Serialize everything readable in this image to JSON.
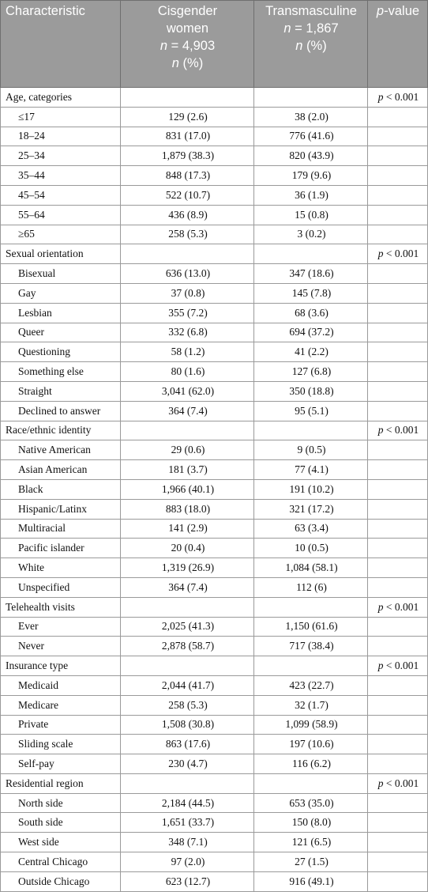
{
  "header": {
    "col1": "Characteristic",
    "col2_line1": "Cisgender",
    "col2_line2": "women",
    "col2_n_italic": "n",
    "col2_n_value": " = 4,903",
    "col2_pct_italic": "n",
    "col2_pct_value": " (%)",
    "col3_line1": "Transmasculine",
    "col3_n_italic": "n",
    "col3_n_value": " = 1,867",
    "col3_pct_italic": "n",
    "col3_pct_value": " (%)",
    "col4_italic": "p",
    "col4_rest": "-value"
  },
  "p_italic": "p",
  "rows": [
    {
      "label": "Age, categories",
      "cis": "",
      "trans": "",
      "p": " < 0.001",
      "category": true
    },
    {
      "label": "≤17",
      "cis": "129 (2.6)",
      "trans": "38 (2.0)",
      "p": ""
    },
    {
      "label": "18–24",
      "cis": "831 (17.0)",
      "trans": "776 (41.6)",
      "p": ""
    },
    {
      "label": "25–34",
      "cis": "1,879 (38.3)",
      "trans": "820 (43.9)",
      "p": ""
    },
    {
      "label": "35–44",
      "cis": "848 (17.3)",
      "trans": "179 (9.6)",
      "p": ""
    },
    {
      "label": "45–54",
      "cis": "522 (10.7)",
      "trans": "36 (1.9)",
      "p": ""
    },
    {
      "label": "55–64",
      "cis": "436 (8.9)",
      "trans": "15 (0.8)",
      "p": ""
    },
    {
      "label": "≥65",
      "cis": "258 (5.3)",
      "trans": "3 (0.2)",
      "p": ""
    },
    {
      "label": "Sexual orientation",
      "cis": "",
      "trans": "",
      "p": " < 0.001",
      "category": true
    },
    {
      "label": "Bisexual",
      "cis": "636 (13.0)",
      "trans": "347 (18.6)",
      "p": ""
    },
    {
      "label": "Gay",
      "cis": "37 (0.8)",
      "trans": "145 (7.8)",
      "p": ""
    },
    {
      "label": "Lesbian",
      "cis": "355 (7.2)",
      "trans": "68 (3.6)",
      "p": ""
    },
    {
      "label": "Queer",
      "cis": "332 (6.8)",
      "trans": "694 (37.2)",
      "p": ""
    },
    {
      "label": "Questioning",
      "cis": "58 (1.2)",
      "trans": "41 (2.2)",
      "p": ""
    },
    {
      "label": "Something else",
      "cis": "80 (1.6)",
      "trans": "127 (6.8)",
      "p": ""
    },
    {
      "label": "Straight",
      "cis": "3,041 (62.0)",
      "trans": "350 (18.8)",
      "p": ""
    },
    {
      "label": "Declined to answer",
      "cis": "364 (7.4)",
      "trans": "95 (5.1)",
      "p": ""
    },
    {
      "label": "Race/ethnic identity",
      "cis": "",
      "trans": "",
      "p": " < 0.001",
      "category": true
    },
    {
      "label": "Native American",
      "cis": "29 (0.6)",
      "trans": "9 (0.5)",
      "p": ""
    },
    {
      "label": "Asian American",
      "cis": "181 (3.7)",
      "trans": "77 (4.1)",
      "p": ""
    },
    {
      "label": "Black",
      "cis": "1,966 (40.1)",
      "trans": "191 (10.2)",
      "p": ""
    },
    {
      "label": "Hispanic/Latinx",
      "cis": "883 (18.0)",
      "trans": "321 (17.2)",
      "p": ""
    },
    {
      "label": "Multiracial",
      "cis": "141 (2.9)",
      "trans": "63 (3.4)",
      "p": ""
    },
    {
      "label": "Pacific islander",
      "cis": "20 (0.4)",
      "trans": "10 (0.5)",
      "p": ""
    },
    {
      "label": "White",
      "cis": "1,319 (26.9)",
      "trans": "1,084 (58.1)",
      "p": ""
    },
    {
      "label": "Unspecified",
      "cis": "364 (7.4)",
      "trans": "112 (6)",
      "p": ""
    },
    {
      "label": "Telehealth visits",
      "cis": "",
      "trans": "",
      "p": " < 0.001",
      "category": true
    },
    {
      "label": "Ever",
      "cis": "2,025 (41.3)",
      "trans": "1,150 (61.6)",
      "p": ""
    },
    {
      "label": "Never",
      "cis": "2,878 (58.7)",
      "trans": "717 (38.4)",
      "p": ""
    },
    {
      "label": "Insurance type",
      "cis": "",
      "trans": "",
      "p": " < 0.001",
      "category": true
    },
    {
      "label": "Medicaid",
      "cis": "2,044 (41.7)",
      "trans": "423 (22.7)",
      "p": ""
    },
    {
      "label": "Medicare",
      "cis": "258 (5.3)",
      "trans": "32 (1.7)",
      "p": ""
    },
    {
      "label": "Private",
      "cis": "1,508 (30.8)",
      "trans": "1,099 (58.9)",
      "p": ""
    },
    {
      "label": "Sliding scale",
      "cis": "863 (17.6)",
      "trans": "197 (10.6)",
      "p": ""
    },
    {
      "label": "Self-pay",
      "cis": "230 (4.7)",
      "trans": "116 (6.2)",
      "p": ""
    },
    {
      "label": "Residential region",
      "cis": "",
      "trans": "",
      "p": " < 0.001",
      "category": true
    },
    {
      "label": "North side",
      "cis": "2,184 (44.5)",
      "trans": "653 (35.0)",
      "p": ""
    },
    {
      "label": "South side",
      "cis": "1,651 (33.7)",
      "trans": "150 (8.0)",
      "p": ""
    },
    {
      "label": "West side",
      "cis": "348 (7.1)",
      "trans": "121 (6.5)",
      "p": ""
    },
    {
      "label": "Central Chicago",
      "cis": "97 (2.0)",
      "trans": "27 (1.5)",
      "p": ""
    },
    {
      "label": "Outside Chicago",
      "cis": "623 (12.7)",
      "trans": "916 (49.1)",
      "p": ""
    }
  ]
}
